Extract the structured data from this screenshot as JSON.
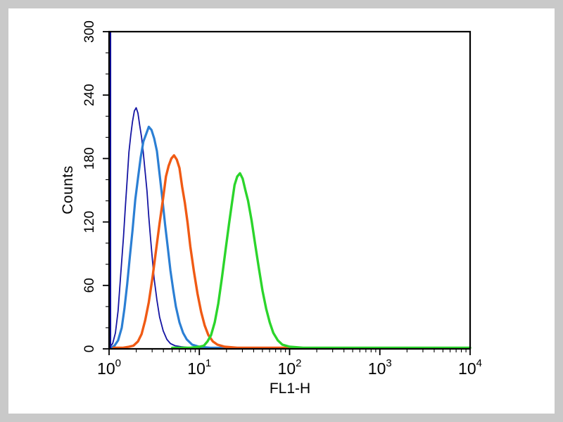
{
  "figure": {
    "background_color": "#c9c9c9",
    "panel_color": "#ffffff",
    "frame_color": "#000000"
  },
  "chart_data": {
    "type": "line",
    "chart_kind": "flow-cytometry-overlay-histogram",
    "title": "",
    "xlabel": "FL1-H",
    "ylabel": "Counts",
    "x_scale": "log10",
    "xlim_log": [
      0,
      4
    ],
    "ylim": [
      0,
      300
    ],
    "grid": false,
    "legend": "none",
    "x_major_ticks_log": [
      0,
      1,
      2,
      3,
      4
    ],
    "x_tick_labels": [
      {
        "base": "10",
        "exp": "0"
      },
      {
        "base": "10",
        "exp": "1"
      },
      {
        "base": "10",
        "exp": "2"
      },
      {
        "base": "10",
        "exp": "3"
      },
      {
        "base": "10",
        "exp": "4"
      }
    ],
    "y_major_ticks": [
      0,
      60,
      120,
      180,
      240,
      300
    ],
    "y_minor_step": 20,
    "axis_spike": {
      "name": "origin-spike",
      "color": "#0b0b96",
      "x_log": 0.008,
      "from": 0,
      "to": 300,
      "width": 4
    },
    "series": [
      {
        "name": "dark-blue-peak",
        "color": "#1515a3",
        "width": 1.8,
        "peak_x": 2.0,
        "peak_count": 228,
        "points": [
          [
            0.0,
            1
          ],
          [
            0.04,
            5
          ],
          [
            0.07,
            15
          ],
          [
            0.1,
            36
          ],
          [
            0.13,
            72
          ],
          [
            0.16,
            106
          ],
          [
            0.18,
            134
          ],
          [
            0.2,
            160
          ],
          [
            0.22,
            186
          ],
          [
            0.24,
            202
          ],
          [
            0.26,
            215
          ],
          [
            0.28,
            225
          ],
          [
            0.3,
            228
          ],
          [
            0.32,
            223
          ],
          [
            0.34,
            211
          ],
          [
            0.36,
            200
          ],
          [
            0.38,
            185
          ],
          [
            0.4,
            167
          ],
          [
            0.42,
            149
          ],
          [
            0.44,
            125
          ],
          [
            0.46,
            104
          ],
          [
            0.48,
            84
          ],
          [
            0.5,
            66
          ],
          [
            0.53,
            46
          ],
          [
            0.56,
            30
          ],
          [
            0.6,
            17
          ],
          [
            0.64,
            9
          ],
          [
            0.68,
            5
          ],
          [
            0.73,
            3
          ],
          [
            0.8,
            2
          ],
          [
            0.92,
            1
          ],
          [
            1.1,
            1
          ],
          [
            1.3,
            1
          ]
        ]
      },
      {
        "name": "light-blue-peak",
        "color": "#2b7fd4",
        "width": 3.2,
        "peak_x": 2.8,
        "peak_count": 210,
        "points": [
          [
            0.02,
            1
          ],
          [
            0.06,
            3
          ],
          [
            0.1,
            8
          ],
          [
            0.14,
            20
          ],
          [
            0.17,
            38
          ],
          [
            0.2,
            61
          ],
          [
            0.23,
            87
          ],
          [
            0.26,
            112
          ],
          [
            0.29,
            141
          ],
          [
            0.32,
            161
          ],
          [
            0.35,
            181
          ],
          [
            0.38,
            196
          ],
          [
            0.41,
            203
          ],
          [
            0.44,
            210
          ],
          [
            0.47,
            207
          ],
          [
            0.5,
            199
          ],
          [
            0.53,
            187
          ],
          [
            0.56,
            165
          ],
          [
            0.59,
            142
          ],
          [
            0.62,
            118
          ],
          [
            0.65,
            96
          ],
          [
            0.68,
            74
          ],
          [
            0.71,
            56
          ],
          [
            0.74,
            40
          ],
          [
            0.78,
            25
          ],
          [
            0.82,
            15
          ],
          [
            0.86,
            9
          ],
          [
            0.92,
            4
          ],
          [
            1.0,
            2
          ],
          [
            1.12,
            1
          ],
          [
            1.3,
            1
          ]
        ]
      },
      {
        "name": "orange-peak",
        "color": "#f05a14",
        "width": 3.4,
        "peak_x": 5.2,
        "peak_count": 183,
        "points": [
          [
            0.05,
            1
          ],
          [
            0.15,
            1
          ],
          [
            0.22,
            2
          ],
          [
            0.27,
            3
          ],
          [
            0.32,
            7
          ],
          [
            0.36,
            14
          ],
          [
            0.4,
            27
          ],
          [
            0.44,
            44
          ],
          [
            0.48,
            67
          ],
          [
            0.52,
            93
          ],
          [
            0.56,
            119
          ],
          [
            0.6,
            143
          ],
          [
            0.63,
            163
          ],
          [
            0.66,
            173
          ],
          [
            0.69,
            180
          ],
          [
            0.72,
            183
          ],
          [
            0.75,
            179
          ],
          [
            0.78,
            171
          ],
          [
            0.81,
            153
          ],
          [
            0.84,
            138
          ],
          [
            0.87,
            119
          ],
          [
            0.9,
            97
          ],
          [
            0.94,
            73
          ],
          [
            0.98,
            52
          ],
          [
            1.02,
            35
          ],
          [
            1.06,
            22
          ],
          [
            1.1,
            13
          ],
          [
            1.15,
            7
          ],
          [
            1.2,
            4
          ],
          [
            1.28,
            2
          ],
          [
            1.42,
            1
          ],
          [
            1.7,
            1
          ],
          [
            2.1,
            1
          ]
        ]
      },
      {
        "name": "green-peak",
        "color": "#2bd52b",
        "width": 3.4,
        "peak_x": 28,
        "peak_count": 166,
        "points": [
          [
            0.7,
            1
          ],
          [
            0.9,
            1
          ],
          [
            1.0,
            2
          ],
          [
            1.05,
            3
          ],
          [
            1.09,
            7
          ],
          [
            1.13,
            13
          ],
          [
            1.17,
            25
          ],
          [
            1.21,
            43
          ],
          [
            1.25,
            67
          ],
          [
            1.29,
            93
          ],
          [
            1.33,
            119
          ],
          [
            1.36,
            137
          ],
          [
            1.39,
            155
          ],
          [
            1.42,
            163
          ],
          [
            1.45,
            166
          ],
          [
            1.48,
            161
          ],
          [
            1.51,
            150
          ],
          [
            1.54,
            140
          ],
          [
            1.58,
            121
          ],
          [
            1.62,
            98
          ],
          [
            1.66,
            76
          ],
          [
            1.7,
            55
          ],
          [
            1.74,
            38
          ],
          [
            1.78,
            25
          ],
          [
            1.82,
            15
          ],
          [
            1.87,
            8
          ],
          [
            1.92,
            4
          ],
          [
            2.0,
            2
          ],
          [
            2.15,
            1
          ],
          [
            2.6,
            1
          ],
          [
            3.2,
            1
          ],
          [
            4.0,
            1
          ]
        ]
      }
    ]
  }
}
